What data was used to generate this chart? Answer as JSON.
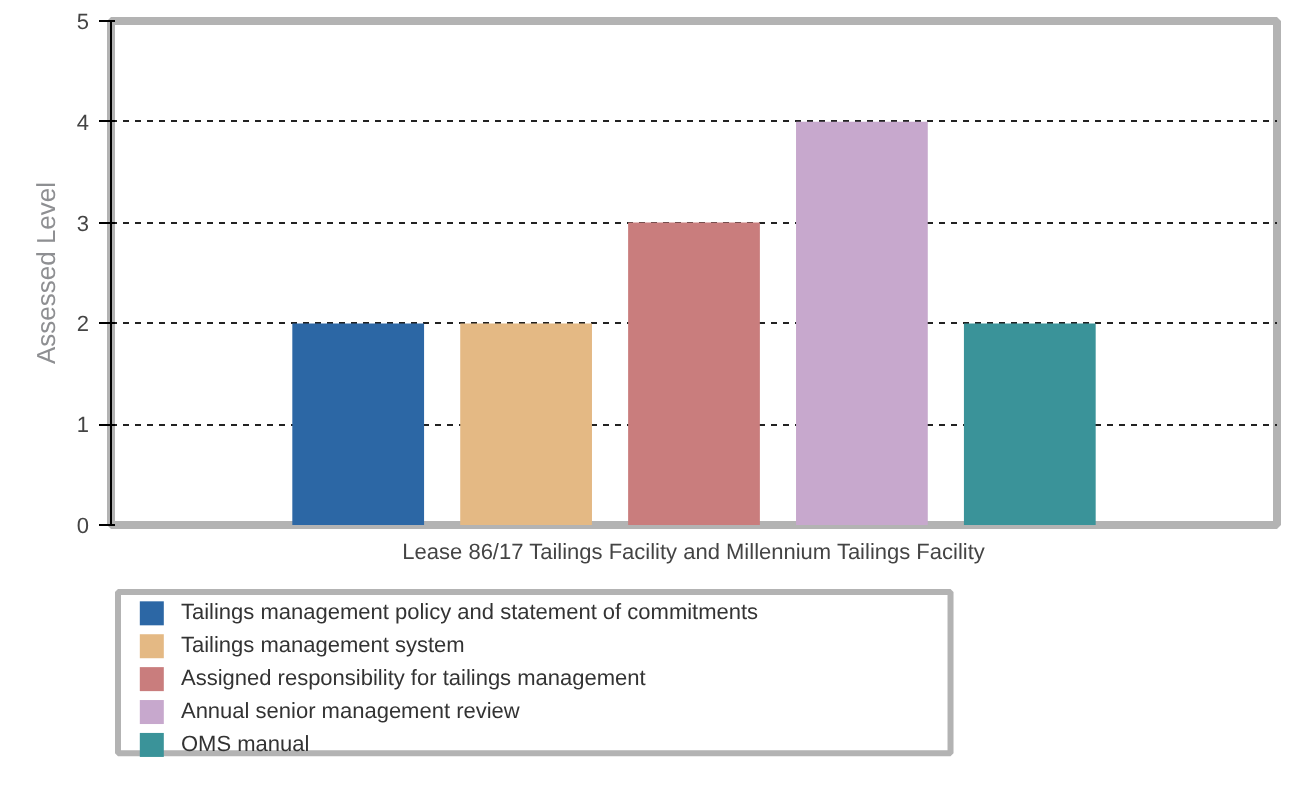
{
  "chart_data": {
    "type": "bar",
    "xlabel": "Lease 86/17 Tailings Facility and Millennium Tailings Facility",
    "ylabel": "Assessed Level",
    "categories": [
      null
    ],
    "series": [
      {
        "name": "Tailings management policy and statement of commitments",
        "color": "#2c67a5",
        "values": [
          2
        ]
      },
      {
        "name": "Tailings management system",
        "color": "#e4b984",
        "values": [
          2
        ]
      },
      {
        "name": "Assigned responsibility for tailings management",
        "color": "#c97d7d",
        "values": [
          3
        ]
      },
      {
        "name": "Annual senior management review",
        "color": "#c7a8cd",
        "values": [
          4
        ]
      },
      {
        "name": "OMS manual",
        "color": "#3a9399",
        "values": [
          2
        ]
      }
    ],
    "ylim": [
      0,
      5
    ],
    "yticks": [
      0,
      1,
      2,
      3,
      4,
      5
    ],
    "grid": "y",
    "legend": "bottom"
  }
}
